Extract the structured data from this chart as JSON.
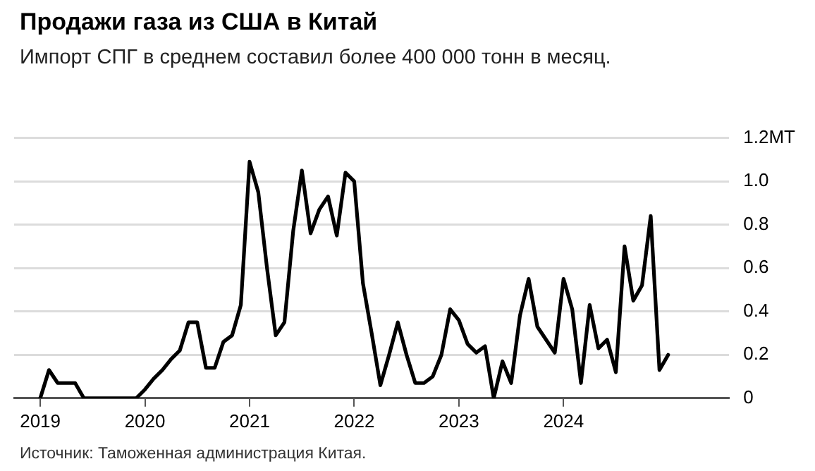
{
  "chart_data": {
    "type": "line",
    "title": "Продажи газа из США в Китай",
    "subtitle": "Импорт СПГ в среднем составил более 400 000 тонн в месяц.",
    "annotations": [
      "Источник: Таможенная администрация Китая."
    ],
    "x": [
      "2019-01",
      "2019-02",
      "2019-03",
      "2019-04",
      "2019-05",
      "2019-06",
      "2019-07",
      "2019-08",
      "2019-09",
      "2019-10",
      "2019-11",
      "2019-12",
      "2020-01",
      "2020-02",
      "2020-03",
      "2020-04",
      "2020-05",
      "2020-06",
      "2020-07",
      "2020-08",
      "2020-09",
      "2020-10",
      "2020-11",
      "2020-12",
      "2021-01",
      "2021-02",
      "2021-03",
      "2021-04",
      "2021-05",
      "2021-06",
      "2021-07",
      "2021-08",
      "2021-09",
      "2021-10",
      "2021-11",
      "2021-12",
      "2022-01",
      "2022-02",
      "2022-03",
      "2022-04",
      "2022-05",
      "2022-06",
      "2022-07",
      "2022-08",
      "2022-09",
      "2022-10",
      "2022-11",
      "2022-12",
      "2023-01",
      "2023-02",
      "2023-03",
      "2023-04",
      "2023-05",
      "2023-06",
      "2023-07",
      "2023-08",
      "2023-09",
      "2023-10",
      "2023-11",
      "2023-12",
      "2024-01",
      "2024-02",
      "2024-03",
      "2024-04",
      "2024-05",
      "2024-06",
      "2024-07",
      "2024-08",
      "2024-09",
      "2024-10",
      "2024-11",
      "2024-12",
      "2025-01"
    ],
    "series": [
      {
        "color": "#000000",
        "values": [
          0,
          0.13,
          0.07,
          0.07,
          0.07,
          0,
          0,
          0,
          0,
          0,
          0,
          0,
          0.04,
          0.09,
          0.13,
          0.18,
          0.22,
          0.35,
          0.35,
          0.14,
          0.14,
          0.26,
          0.29,
          0.43,
          1.09,
          0.95,
          0.6,
          0.29,
          0.35,
          0.77,
          1.05,
          0.76,
          0.87,
          0.93,
          0.75,
          1.04,
          1.0,
          0.53,
          0.3,
          0.06,
          0.2,
          0.35,
          0.2,
          0.07,
          0.07,
          0.1,
          0.2,
          0.41,
          0.36,
          0.25,
          0.21,
          0.24,
          0,
          0.17,
          0.07,
          0.38,
          0.55,
          0.33,
          0.27,
          0.21,
          0.55,
          0.41,
          0.07,
          0.43,
          0.23,
          0.27,
          0.12,
          0.7,
          0.45,
          0.52,
          0.84,
          0.13,
          0.2
        ]
      }
    ],
    "xlim": [
      "2018-10",
      "2025-08"
    ],
    "xticks": [
      {
        "value": "2019-01",
        "label": "2019"
      },
      {
        "value": "2020-01",
        "label": "2020"
      },
      {
        "value": "2021-01",
        "label": "2021"
      },
      {
        "value": "2022-01",
        "label": "2022"
      },
      {
        "value": "2023-01",
        "label": "2023"
      },
      {
        "value": "2024-01",
        "label": "2024"
      }
    ],
    "ylim": [
      0,
      1.2
    ],
    "yticks": [
      0,
      0.2,
      0.4,
      0.6,
      0.8,
      {
        "value": 1.0,
        "label": "1.0"
      },
      {
        "value": 1.2,
        "label": "1.2MT"
      }
    ],
    "grid": "y",
    "legend": false,
    "marker": "none",
    "line_style": "solid"
  }
}
